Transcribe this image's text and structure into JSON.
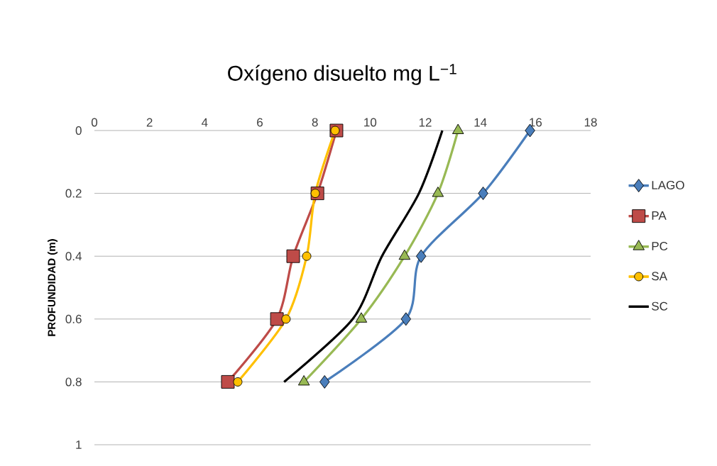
{
  "chart_data": {
    "type": "line",
    "title": "Oxígeno disuelto mg L$^{−1}$",
    "ylabel": "PROFUNDIDAD (m)",
    "xlim": [
      0,
      18
    ],
    "xticks": [
      0,
      2,
      4,
      6,
      8,
      10,
      12,
      14,
      16,
      18
    ],
    "ylim": [
      1,
      0
    ],
    "yticks": [
      0,
      0.2,
      0.4,
      0.6,
      0.8,
      1
    ],
    "grid": "y",
    "legend": "right",
    "series": [
      {
        "name": "LAGO",
        "color": "#4a7ebb",
        "marker": "diamond",
        "x": [
          15.8,
          14.1,
          11.85,
          11.3,
          8.35
        ],
        "values": [
          0,
          0.2,
          0.4,
          0.6,
          0.8
        ]
      },
      {
        "name": "PA",
        "color": "#be4b48",
        "marker": "square",
        "x": [
          8.78,
          8.09,
          7.21,
          6.62,
          4.84
        ],
        "values": [
          0,
          0.2,
          0.4,
          0.6,
          0.8
        ]
      },
      {
        "name": "PC",
        "color": "#98b954",
        "marker": "triangle",
        "x": [
          13.19,
          12.46,
          11.25,
          9.68,
          7.6
        ],
        "values": [
          0,
          0.2,
          0.4,
          0.6,
          0.8
        ]
      },
      {
        "name": "SA",
        "color": "#ffc000",
        "marker": "circle",
        "x": [
          8.73,
          8.01,
          7.7,
          6.95,
          5.2
        ],
        "values": [
          0,
          0.2,
          0.4,
          0.6,
          0.8
        ]
      },
      {
        "name": "SC",
        "color": "#000000",
        "marker": "none",
        "x": [
          12.62,
          11.77,
          10.43,
          9.37,
          6.88
        ],
        "values": [
          0,
          0.2,
          0.4,
          0.6,
          0.8
        ]
      }
    ]
  }
}
